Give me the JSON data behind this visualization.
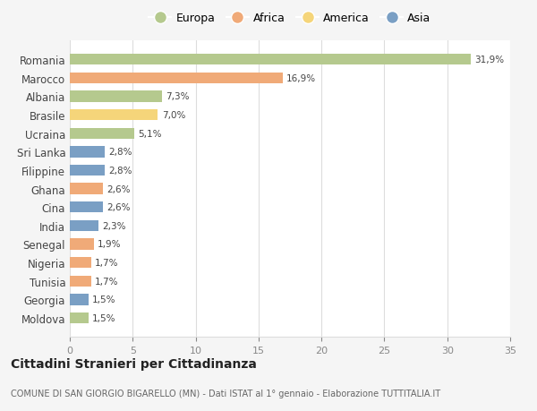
{
  "countries": [
    "Romania",
    "Marocco",
    "Albania",
    "Brasile",
    "Ucraina",
    "Sri Lanka",
    "Filippine",
    "Ghana",
    "Cina",
    "India",
    "Senegal",
    "Nigeria",
    "Tunisia",
    "Georgia",
    "Moldova"
  ],
  "values": [
    31.9,
    16.9,
    7.3,
    7.0,
    5.1,
    2.8,
    2.8,
    2.6,
    2.6,
    2.3,
    1.9,
    1.7,
    1.7,
    1.5,
    1.5
  ],
  "labels": [
    "31,9%",
    "16,9%",
    "7,3%",
    "7,0%",
    "5,1%",
    "2,8%",
    "2,8%",
    "2,6%",
    "2,6%",
    "2,3%",
    "1,9%",
    "1,7%",
    "1,7%",
    "1,5%",
    "1,5%"
  ],
  "continents": [
    "Europa",
    "Africa",
    "Europa",
    "America",
    "Europa",
    "Asia",
    "Asia",
    "Africa",
    "Asia",
    "Asia",
    "Africa",
    "Africa",
    "Africa",
    "Asia",
    "Europa"
  ],
  "colors": {
    "Europa": "#b5c98e",
    "Africa": "#f0aa78",
    "America": "#f5d57a",
    "Asia": "#7a9fc4"
  },
  "legend_order": [
    "Europa",
    "Africa",
    "America",
    "Asia"
  ],
  "title": "Cittadini Stranieri per Cittadinanza",
  "subtitle": "COMUNE DI SAN GIORGIO BIGARELLO (MN) - Dati ISTAT al 1° gennaio - Elaborazione TUTTITALIA.IT",
  "xlim": [
    0,
    35
  ],
  "xticks": [
    0,
    5,
    10,
    15,
    20,
    25,
    30,
    35
  ],
  "bg_color": "#f5f5f5",
  "plot_bg_color": "#ffffff",
  "grid_color": "#dddddd"
}
